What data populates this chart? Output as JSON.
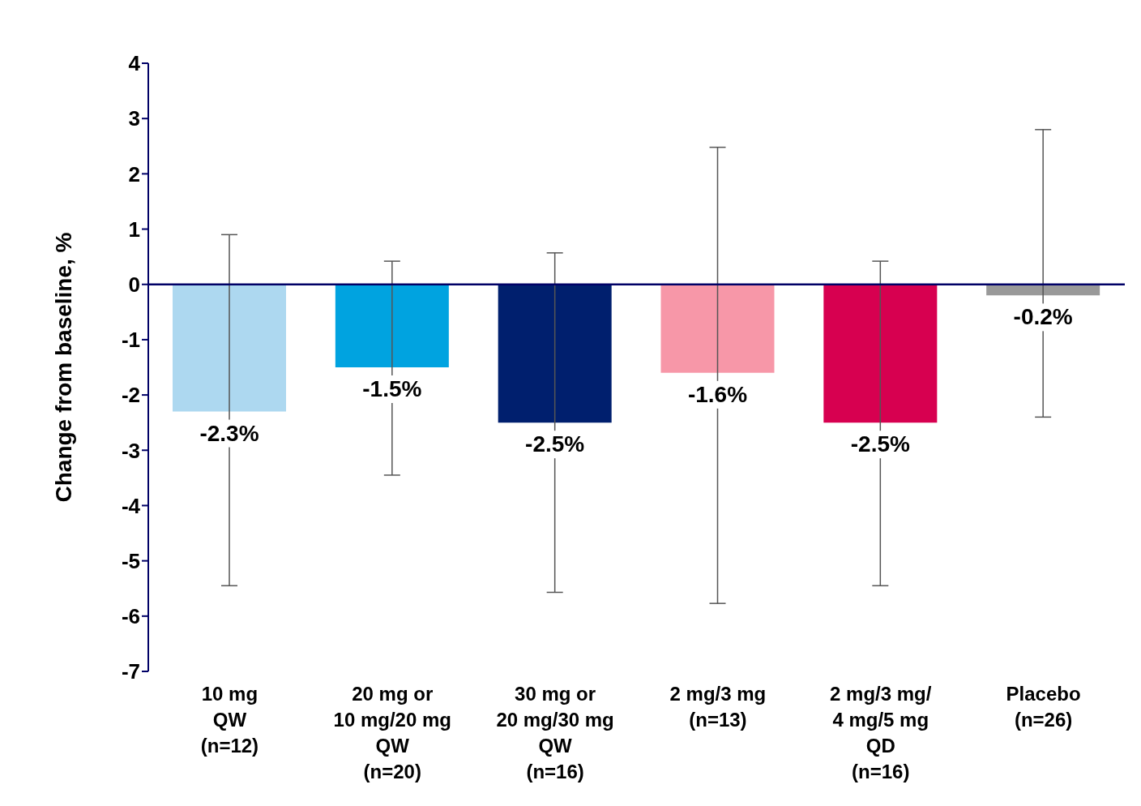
{
  "chart_data": {
    "type": "bar",
    "ylabel": "Change from baseline, %",
    "categories": [
      "10 mg\nQW\n(n=12)",
      "20 mg or\n10 mg/20 mg\nQW\n(n=20)",
      "30 mg or\n20 mg/30 mg\nQW\n(n=16)",
      "2 mg/3 mg\n(n=13)",
      "2 mg/3 mg/\n4 mg/5 mg\nQD\n(n=16)",
      "Placebo\n(n=26)"
    ],
    "values": [
      -2.3,
      -1.5,
      -2.5,
      -1.6,
      -2.5,
      -0.2
    ],
    "colors": [
      "#add8f0",
      "#00a3e0",
      "#001f6e",
      "#f797a8",
      "#d70050",
      "#999999"
    ],
    "errors": [
      [
        -5.45,
        0.9
      ],
      [
        -3.45,
        0.42
      ],
      [
        -5.57,
        0.57
      ],
      [
        -5.77,
        2.48
      ],
      [
        -5.45,
        0.42
      ],
      [
        -2.4,
        2.8
      ]
    ],
    "value_labels": [
      "-2.3%",
      "-1.5%",
      "-2.5%",
      "-1.6%",
      "-2.5%",
      "-0.2%"
    ],
    "ylim": [
      -7,
      4
    ],
    "yticks": [
      -7,
      -6,
      -5,
      -4,
      -3,
      -2,
      -1,
      0,
      1,
      2,
      3,
      4
    ],
    "ref_lines": [
      {
        "axis": "y",
        "value": 0,
        "color": "#000066"
      }
    ],
    "grid": false
  }
}
